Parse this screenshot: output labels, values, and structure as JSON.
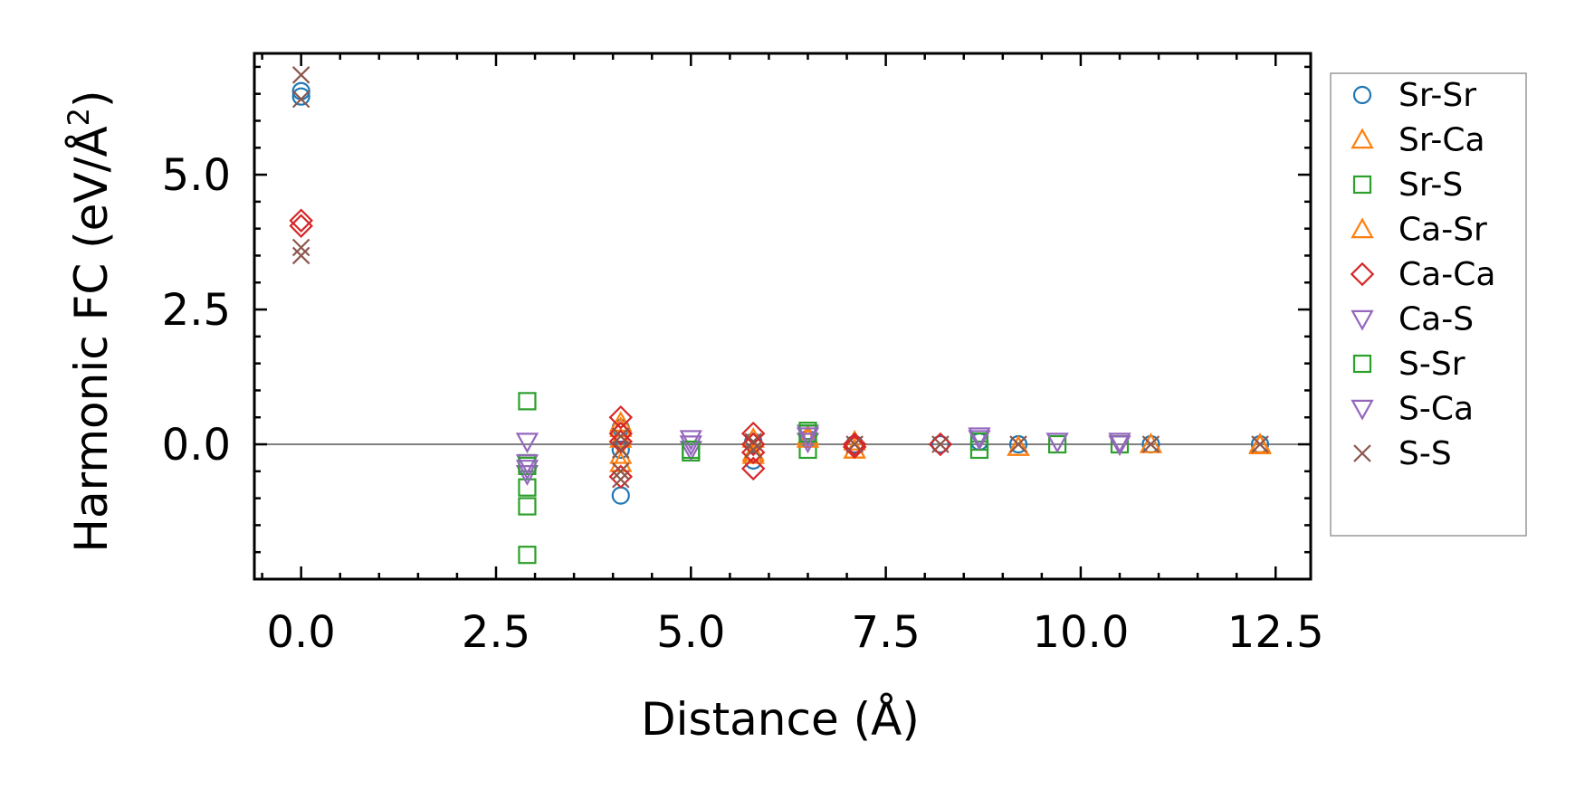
{
  "chart_data": {
    "type": "scatter",
    "title": "",
    "xlabel": "Distance (Å)",
    "ylabel_main": "Harmonic FC (eV/Å",
    "ylabel_sup": "2",
    "ylabel_tail": ")",
    "xlim": [
      -0.6,
      12.95
    ],
    "ylim": [
      -2.5,
      7.25
    ],
    "xticks": [
      0.0,
      2.5,
      5.0,
      7.5,
      10.0,
      12.5
    ],
    "xtick_labels": [
      "0.0",
      "2.5",
      "5.0",
      "7.5",
      "10.0",
      "12.5"
    ],
    "yticks": [
      0.0,
      2.5,
      5.0
    ],
    "ytick_labels": [
      "0.0",
      "2.5",
      "5.0"
    ],
    "zero_line": 0,
    "grid": false,
    "legend_position": "outside-right",
    "series": [
      {
        "name": "Sr-Sr",
        "marker": "circle",
        "color": "#1f77b4",
        "points": [
          [
            0.0,
            6.55
          ],
          [
            0.0,
            6.45
          ],
          [
            4.1,
            -0.95
          ],
          [
            4.1,
            0.3
          ],
          [
            4.1,
            -0.1
          ],
          [
            5.8,
            -0.3
          ],
          [
            5.8,
            0.05
          ],
          [
            6.5,
            0.1
          ],
          [
            7.1,
            0.0
          ],
          [
            8.2,
            0.0
          ],
          [
            8.7,
            0.05
          ],
          [
            9.2,
            0.0
          ],
          [
            10.9,
            0.0
          ],
          [
            12.3,
            0.0
          ]
        ]
      },
      {
        "name": "Sr-Ca",
        "marker": "triangle-up",
        "color": "#ff7f0e",
        "points": [
          [
            4.1,
            0.4
          ],
          [
            4.1,
            -0.35
          ],
          [
            4.1,
            0.1
          ],
          [
            5.8,
            -0.2
          ],
          [
            5.8,
            0.1
          ],
          [
            6.5,
            0.15
          ],
          [
            7.1,
            -0.1
          ],
          [
            7.1,
            0.05
          ],
          [
            9.2,
            -0.05
          ],
          [
            10.9,
            0.0
          ],
          [
            12.3,
            -0.02
          ]
        ]
      },
      {
        "name": "Sr-S",
        "marker": "square",
        "color": "#2ca02c",
        "points": [
          [
            2.9,
            0.8
          ],
          [
            2.9,
            -0.35
          ],
          [
            2.9,
            -0.8
          ],
          [
            2.9,
            -1.15
          ],
          [
            2.9,
            -2.05
          ],
          [
            5.0,
            -0.15
          ],
          [
            6.5,
            0.25
          ],
          [
            6.5,
            -0.1
          ],
          [
            8.7,
            -0.1
          ],
          [
            9.7,
            0.0
          ],
          [
            10.5,
            0.0
          ]
        ]
      },
      {
        "name": "Ca-Sr",
        "marker": "triangle-up",
        "color": "#ff7f0e",
        "points": [
          [
            4.1,
            0.3
          ],
          [
            4.1,
            -0.2
          ],
          [
            5.8,
            -0.15
          ],
          [
            6.5,
            0.1
          ],
          [
            7.1,
            -0.1
          ],
          [
            9.2,
            -0.05
          ],
          [
            12.3,
            0.0
          ]
        ]
      },
      {
        "name": "Ca-Ca",
        "marker": "diamond",
        "color": "#d62728",
        "points": [
          [
            0.0,
            4.15
          ],
          [
            0.0,
            4.05
          ],
          [
            4.1,
            0.5
          ],
          [
            4.1,
            0.2
          ],
          [
            4.1,
            -0.6
          ],
          [
            4.1,
            0.05
          ],
          [
            5.8,
            0.2
          ],
          [
            5.8,
            -0.15
          ],
          [
            5.8,
            -0.45
          ],
          [
            5.8,
            0.0
          ],
          [
            7.1,
            0.0
          ],
          [
            7.1,
            -0.05
          ],
          [
            8.2,
            0.0
          ]
        ]
      },
      {
        "name": "Ca-S",
        "marker": "triangle-down",
        "color": "#9467bd",
        "points": [
          [
            2.9,
            0.05
          ],
          [
            2.9,
            -0.35
          ],
          [
            2.9,
            -0.55
          ],
          [
            5.0,
            0.1
          ],
          [
            5.0,
            -0.1
          ],
          [
            6.5,
            0.2
          ],
          [
            6.5,
            0.05
          ],
          [
            8.7,
            0.15
          ],
          [
            9.7,
            0.05
          ],
          [
            10.5,
            0.05
          ]
        ]
      },
      {
        "name": "S-Sr",
        "marker": "square",
        "color": "#2ca02c",
        "points": [
          [
            2.9,
            -0.4
          ],
          [
            5.0,
            -0.1
          ],
          [
            6.5,
            0.2
          ],
          [
            8.7,
            0.05
          ]
        ]
      },
      {
        "name": "S-Ca",
        "marker": "triangle-down",
        "color": "#9467bd",
        "points": [
          [
            2.9,
            -0.45
          ],
          [
            5.0,
            0.0
          ],
          [
            6.5,
            0.15
          ],
          [
            8.7,
            0.1
          ],
          [
            10.5,
            0.0
          ]
        ]
      },
      {
        "name": "S-S",
        "marker": "x",
        "color": "#8c564b",
        "points": [
          [
            0.0,
            6.85
          ],
          [
            0.0,
            6.4
          ],
          [
            0.0,
            3.65
          ],
          [
            0.0,
            3.5
          ],
          [
            4.1,
            0.15
          ],
          [
            4.1,
            -0.1
          ],
          [
            4.1,
            -0.5
          ],
          [
            4.1,
            -0.65
          ],
          [
            5.8,
            0.05
          ],
          [
            5.8,
            -0.1
          ],
          [
            7.1,
            0.0
          ],
          [
            8.2,
            0.0
          ],
          [
            9.2,
            0.0
          ],
          [
            10.9,
            0.0
          ],
          [
            12.3,
            0.0
          ]
        ]
      }
    ]
  }
}
